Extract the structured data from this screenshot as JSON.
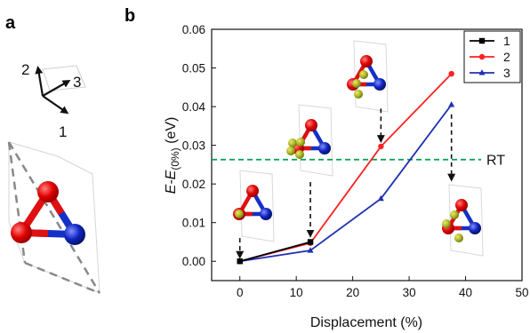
{
  "panels": {
    "a": "a",
    "b": "b"
  },
  "direction_labels": [
    "2",
    "3",
    "1"
  ],
  "chart_data": {
    "type": "line",
    "title": "",
    "xlabel": "Displacement (%)",
    "ylabel_main": "E-E",
    "ylabel_sub": "(0%)",
    "ylabel_unit": " (eV)",
    "xlim": [
      -5,
      50
    ],
    "ylim": [
      -0.005,
      0.06
    ],
    "xticks": [
      0,
      10,
      20,
      30,
      40,
      50
    ],
    "yticks": [
      "0.00",
      "0.01",
      "0.02",
      "0.03",
      "0.04",
      "0.05",
      "0.06"
    ],
    "legend_position": "top-right",
    "series": [
      {
        "name": "1",
        "color": "#000000",
        "marker": "square",
        "x": [
          0,
          12.5
        ],
        "y": [
          0.0,
          0.005
        ]
      },
      {
        "name": "2",
        "color": "#ff2020",
        "marker": "circle",
        "x": [
          0,
          12.5,
          25,
          37.5
        ],
        "y": [
          0.0,
          0.0047,
          0.0297,
          0.0485
        ]
      },
      {
        "name": "3",
        "color": "#2030b0",
        "marker": "triangle",
        "x": [
          0,
          12.5,
          25,
          37.5
        ],
        "y": [
          0.0,
          0.0028,
          0.0162,
          0.0405
        ]
      }
    ],
    "reference_line": {
      "label": "RT",
      "y": 0.0263,
      "color": "#00a050"
    },
    "annotations": [
      {
        "x": 0,
        "y_from": 0.006,
        "y_to": 0.0015
      },
      {
        "x": 12.5,
        "y_from": 0.0205,
        "y_to": 0.007
      },
      {
        "x": 25,
        "y_from": 0.0395,
        "y_to": 0.0315
      },
      {
        "x": 37.5,
        "y_from": 0.038,
        "y_to": 0.0215
      }
    ]
  }
}
